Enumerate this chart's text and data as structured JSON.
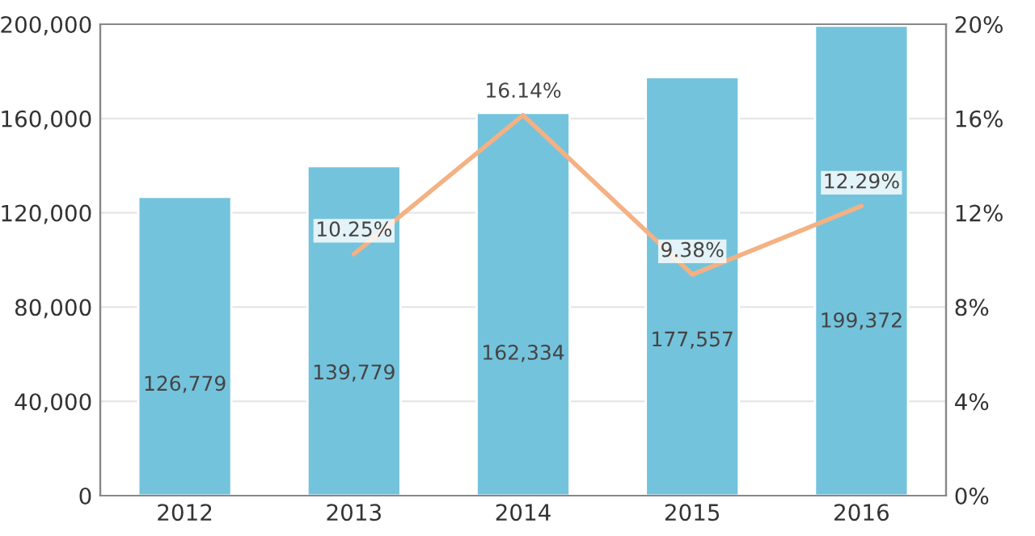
{
  "chart_data": {
    "type": "bar",
    "categories": [
      "2012",
      "2013",
      "2014",
      "2015",
      "2016"
    ],
    "series": [
      {
        "color": "#74c3dc",
        "values": [
          126779,
          139779,
          162334,
          177557,
          199372
        ],
        "value_labels": [
          "126,779",
          "139,779",
          "162,334",
          "177,557",
          "199,372"
        ]
      },
      {
        "type": "line",
        "axis": "y2",
        "color": "#f4b183",
        "values": [
          null,
          10.25,
          16.14,
          9.38,
          12.29
        ],
        "value_labels": [
          null,
          "10.25%",
          "16.14%",
          "9.38%",
          "12.29%"
        ]
      }
    ],
    "ylim": [
      0,
      200000
    ],
    "yticks": [
      {
        "value": 0,
        "label": "0"
      },
      {
        "value": 40000,
        "label": "40,000"
      },
      {
        "value": 80000,
        "label": "80,000"
      },
      {
        "value": 120000,
        "label": "120,000"
      },
      {
        "value": 160000,
        "label": "160,000"
      },
      {
        "value": 200000,
        "label": "200,000"
      }
    ],
    "y2lim": [
      0,
      20
    ],
    "y2ticks": [
      {
        "value": 0,
        "label": "0%"
      },
      {
        "value": 4,
        "label": "4%"
      },
      {
        "value": 8,
        "label": "8%"
      },
      {
        "value": 12,
        "label": "12%"
      },
      {
        "value": 16,
        "label": "16%"
      },
      {
        "value": 20,
        "label": "20%"
      }
    ],
    "grid": "y",
    "legend": false,
    "marker": "none",
    "line_style": "solid"
  }
}
